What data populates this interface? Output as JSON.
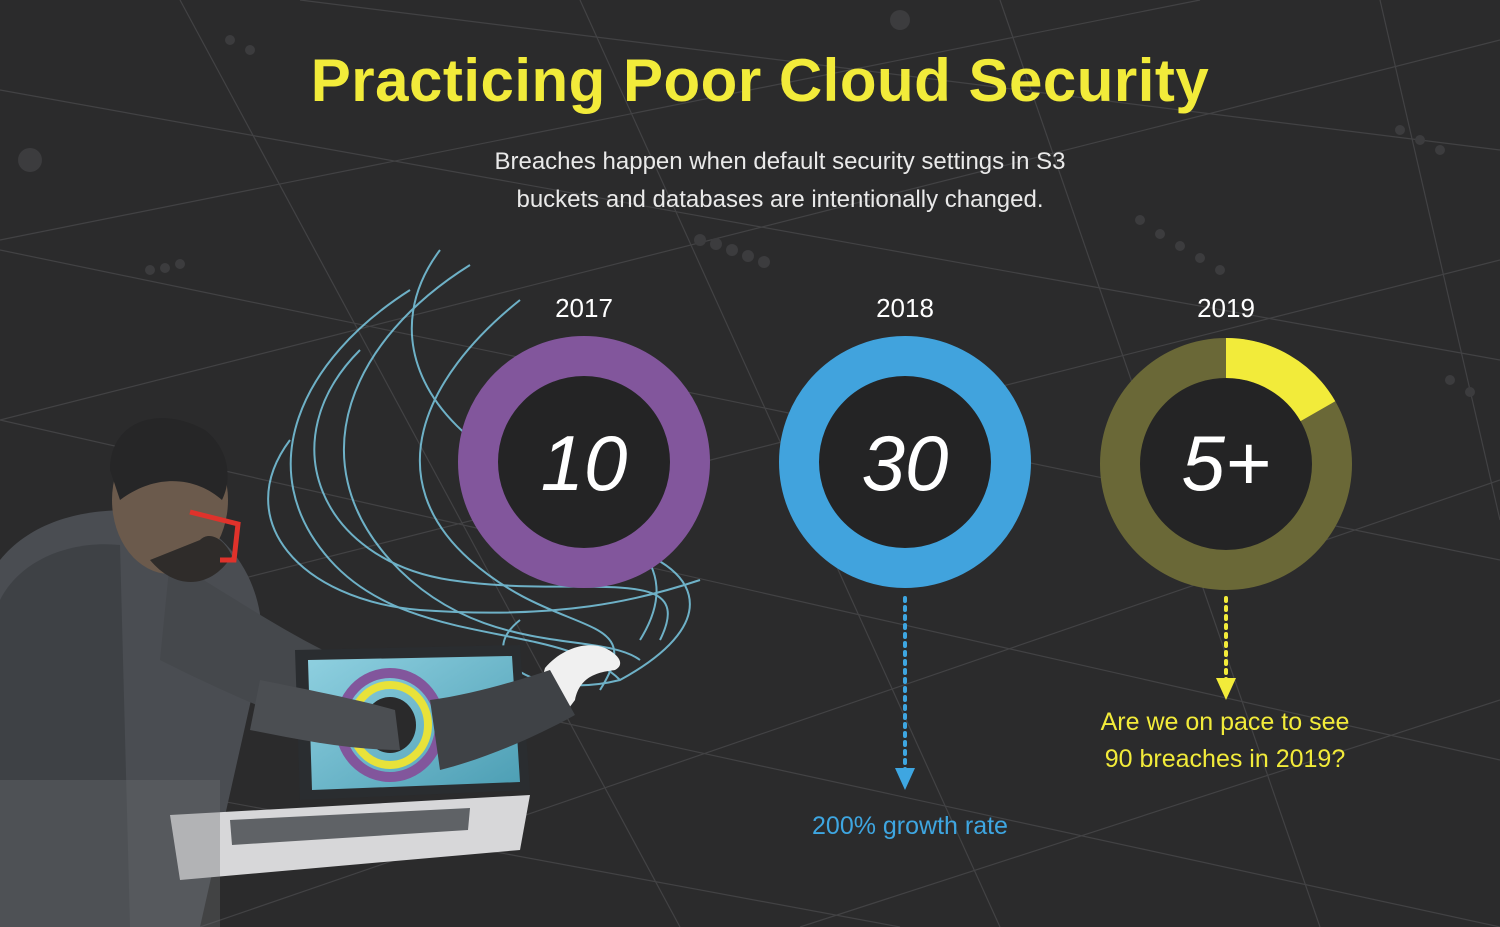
{
  "header": {
    "title": "Practicing Poor Cloud Security",
    "subtitle_line1": "Breaches happen when default security settings in S3",
    "subtitle_line2": "buckets and databases are intentionally changed."
  },
  "rings": [
    {
      "year": "2017",
      "value_label": "10",
      "color": "#82569c",
      "fill_fraction": 1.0
    },
    {
      "year": "2018",
      "value_label": "30",
      "color": "#41a3dd",
      "fill_fraction": 1.0
    },
    {
      "year": "2019",
      "value_label": "5+",
      "color": "#f2eb3a",
      "track_color": "#6a6837",
      "fill_fraction": 0.167
    }
  ],
  "notes": {
    "growth": "200% growth rate",
    "pace_line1": "Are we on pace to see",
    "pace_line2": "90 breaches in 2019?"
  },
  "colors": {
    "background": "#2b2b2c",
    "title": "#f2eb3a",
    "blue_accent": "#3ea6e1",
    "yellow_accent": "#f2eb3a"
  },
  "illustration": {
    "subject": "hacker-reaching-through-laptop-illustration"
  }
}
